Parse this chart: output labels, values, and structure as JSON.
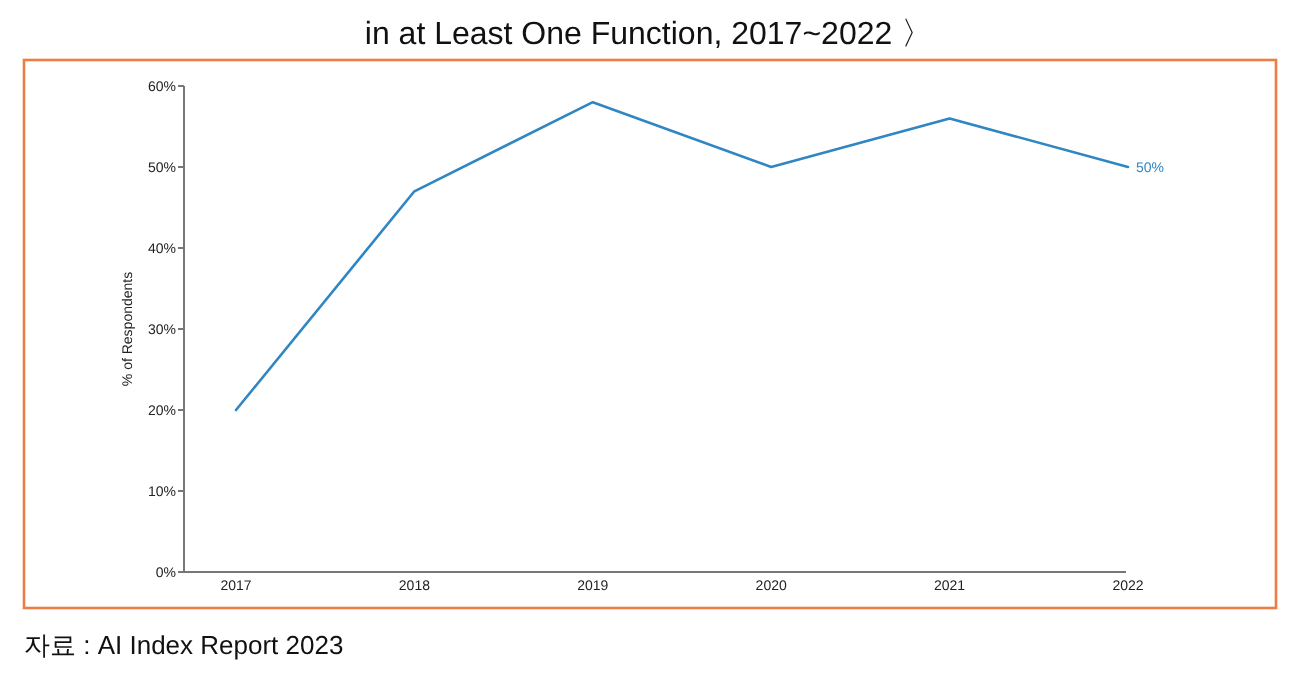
{
  "chart_data": {
    "type": "line",
    "title": "in at Least One Function, 2017~2022 〉",
    "ylabel": "% of Respondents",
    "categories": [
      "2017",
      "2018",
      "2019",
      "2020",
      "2021",
      "2022"
    ],
    "series": [
      {
        "color": "#2f86c3",
        "values": [
          20,
          47,
          58,
          50,
          56,
          50
        ],
        "value_labels": [
          null,
          null,
          null,
          null,
          null,
          "50%"
        ]
      }
    ],
    "ylim": [
      0,
      60
    ],
    "yticks": [
      {
        "value": 0,
        "label": "0%"
      },
      {
        "value": 10,
        "label": "10%"
      },
      {
        "value": 20,
        "label": "20%"
      },
      {
        "value": 30,
        "label": "30%"
      },
      {
        "value": 40,
        "label": "40%"
      },
      {
        "value": 50,
        "label": "50%"
      },
      {
        "value": 60,
        "label": "60%"
      }
    ],
    "grid": false,
    "marker": "none",
    "line_style": "solid",
    "annotations": [
      "자료 : AI Index Report 2023"
    ]
  }
}
